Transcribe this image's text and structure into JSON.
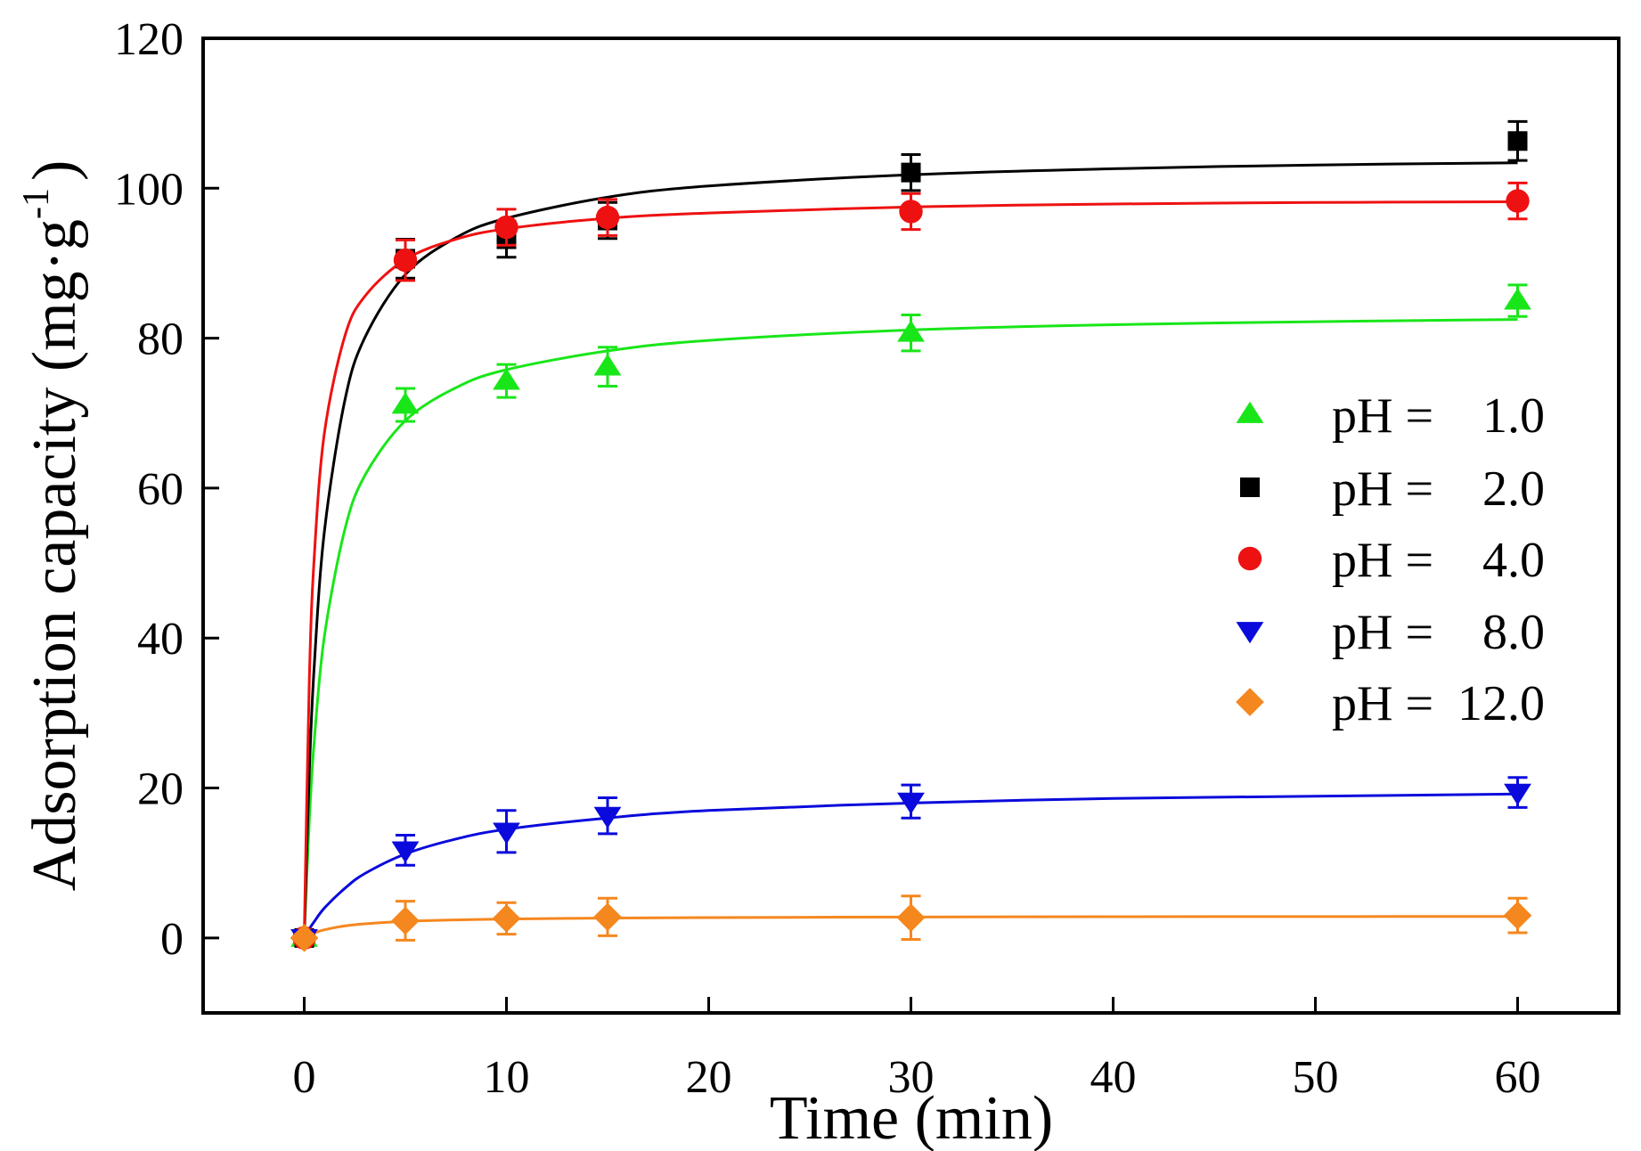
{
  "chart_data": {
    "type": "scatter",
    "title": "",
    "xlabel": "Time (min)",
    "ylabel": "Adsorption capacity (mg·g",
    "ylabel_superscript": "-1",
    "ylabel_suffix": ")",
    "xlim": [
      -5,
      65
    ],
    "ylim": [
      -10,
      120
    ],
    "xticks": [
      0,
      10,
      20,
      30,
      40,
      50,
      60
    ],
    "yticks": [
      0,
      20,
      40,
      60,
      80,
      100,
      120
    ],
    "grid": false,
    "legend_position": "center-right",
    "fit_t": [
      0,
      0.25,
      0.5,
      1,
      2,
      3,
      5,
      7.5,
      10,
      15,
      20,
      30,
      40,
      50,
      60
    ],
    "series": [
      {
        "name": "pH =  1.0",
        "label_key": "pH =",
        "label_value": "1.0",
        "color": "#19e619",
        "marker": "triangle-up",
        "x": [
          0,
          5,
          10,
          15,
          30,
          60
        ],
        "y": [
          0,
          71.1,
          74.3,
          76.2,
          80.7,
          85.0
        ],
        "error": [
          0.5,
          2.2,
          2.2,
          2.6,
          2.4,
          2.1
        ],
        "fit": [
          0,
          15.7,
          26.5,
          40.3,
          54.4,
          61.7,
          69.0,
          73.4,
          75.8,
          78.3,
          79.7,
          81.1,
          81.8,
          82.2,
          82.5
        ]
      },
      {
        "name": "pH =  2.0",
        "label_key": "pH =",
        "label_value": "2.0",
        "color": "#000000",
        "marker": "square",
        "x": [
          0,
          5,
          10,
          15,
          30,
          60
        ],
        "y": [
          0,
          90.6,
          93.2,
          95.7,
          102.1,
          106.3
        ],
        "error": [
          0.5,
          2.6,
          2.4,
          2.4,
          2.4,
          2.6
        ],
        "fit": [
          0,
          22.2,
          36.6,
          54.3,
          71.6,
          80.1,
          88.5,
          93.4,
          96.0,
          98.8,
          100.3,
          101.8,
          102.6,
          103.1,
          103.4
        ]
      },
      {
        "name": "pH =  4.0",
        "label_key": "pH =",
        "label_value": "4.0",
        "color": "#ee1111",
        "marker": "circle",
        "x": [
          0,
          5,
          10,
          15,
          30,
          60
        ],
        "y": [
          0,
          90.4,
          94.8,
          96.1,
          96.9,
          98.3
        ],
        "error": [
          0.5,
          2.7,
          2.4,
          2.4,
          2.4,
          2.4
        ],
        "fit": [
          0,
          34.4,
          51.1,
          67.4,
          80.2,
          85.6,
          90.5,
          93.2,
          94.6,
          96.0,
          96.7,
          97.5,
          97.9,
          98.1,
          98.2
        ]
      },
      {
        "name": "pH =  8.0",
        "label_key": "pH =",
        "label_value": "8.0",
        "color": "#0a0adc",
        "marker": "triangle-down",
        "x": [
          0,
          5,
          10,
          15,
          30,
          60
        ],
        "y": [
          0,
          11.7,
          14.2,
          16.3,
          18.2,
          19.4
        ],
        "error": [
          0.5,
          2.0,
          2.8,
          2.4,
          2.2,
          2.0
        ],
        "fit": [
          0,
          1.2,
          2.2,
          4.0,
          6.6,
          8.6,
          11.2,
          13.2,
          14.5,
          16.0,
          17.0,
          18.0,
          18.6,
          18.9,
          19.2
        ]
      },
      {
        "name": "pH = 12.0",
        "label_key": "pH =",
        "label_value": "12.0",
        "color": "#f5871f",
        "marker": "diamond",
        "x": [
          0,
          5,
          10,
          15,
          30,
          60
        ],
        "y": [
          0,
          2.3,
          2.6,
          2.8,
          2.7,
          3.0
        ],
        "error": [
          0.5,
          2.6,
          2.1,
          2.5,
          2.9,
          2.3
        ],
        "fit": [
          0,
          0.38,
          0.67,
          1.09,
          1.6,
          1.88,
          2.2,
          2.41,
          2.52,
          2.65,
          2.72,
          2.79,
          2.83,
          2.85,
          2.87
        ]
      }
    ]
  }
}
